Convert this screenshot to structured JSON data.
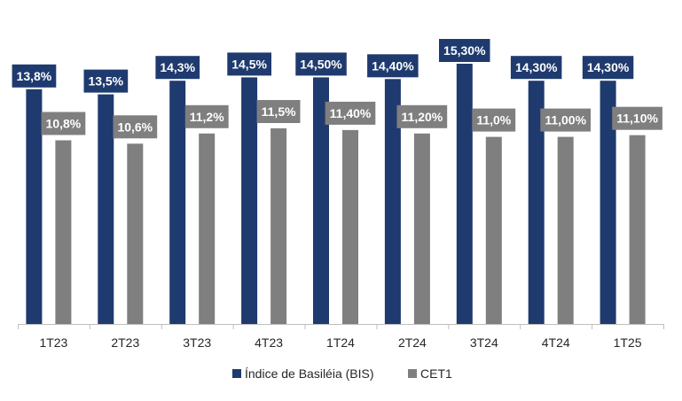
{
  "chart_data": {
    "type": "bar",
    "categories": [
      "1T23",
      "2T23",
      "3T23",
      "4T23",
      "1T24",
      "2T24",
      "3T24",
      "4T24",
      "1T25"
    ],
    "series": [
      {
        "name": "Índice de Basiléia (BIS)",
        "color": "#1f3a6e",
        "values": [
          13.8,
          13.5,
          14.3,
          14.5,
          14.5,
          14.4,
          15.3,
          14.3,
          14.3
        ],
        "labels": [
          "13,8%",
          "13,5%",
          "14,3%",
          "14,5%",
          "14,50%",
          "14,40%",
          "15,30%",
          "14,30%",
          "14,30%"
        ]
      },
      {
        "name": "CET1",
        "color": "#7f7f7f",
        "values": [
          10.8,
          10.6,
          11.2,
          11.5,
          11.4,
          11.2,
          11.0,
          11.0,
          11.1
        ],
        "labels": [
          "10,8%",
          "10,6%",
          "11,2%",
          "11,5%",
          "11,40%",
          "11,20%",
          "11,0%",
          "11,00%",
          "11,10%"
        ]
      }
    ],
    "title": "",
    "xlabel": "",
    "ylabel": "",
    "ylim": [
      0,
      15.3
    ],
    "grid": false,
    "legend": "bottom"
  }
}
